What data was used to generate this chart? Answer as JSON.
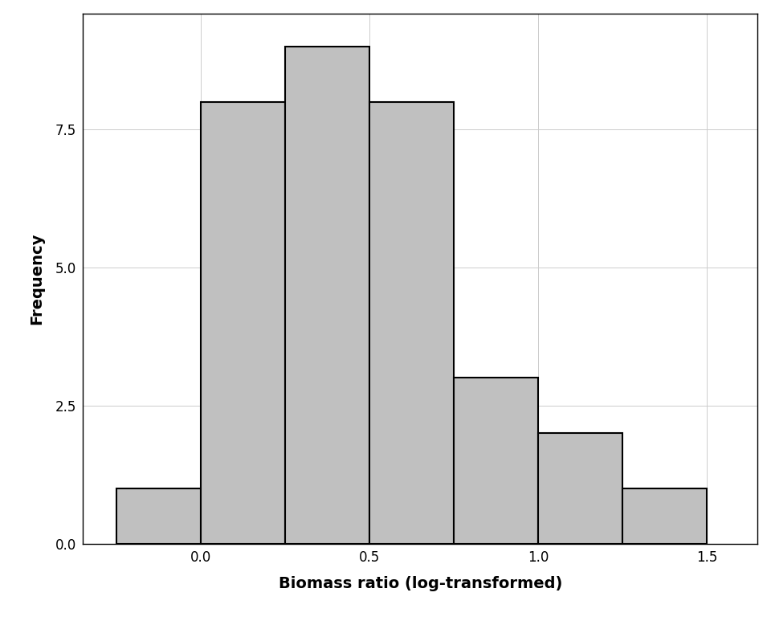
{
  "bin_edges": [
    -0.25,
    0.0,
    0.25,
    0.5,
    0.75,
    1.0,
    1.25,
    1.5
  ],
  "frequencies": [
    1,
    8,
    9,
    8,
    3,
    2,
    1
  ],
  "bar_color": "#c0c0c0",
  "bar_edgecolor": "#000000",
  "bar_linewidth": 1.5,
  "xlabel": "Biomass ratio (log-transformed)",
  "ylabel": "Frequency",
  "xlim": [
    -0.35,
    1.65
  ],
  "ylim": [
    0.0,
    9.6
  ],
  "xticks": [
    0.0,
    0.5,
    1.0,
    1.5
  ],
  "yticks": [
    0.0,
    2.5,
    5.0,
    7.5
  ],
  "xlabel_fontsize": 14,
  "ylabel_fontsize": 14,
  "tick_fontsize": 12,
  "background_color": "#ffffff",
  "panel_background": "#ffffff",
  "grid_color": "#cccccc",
  "grid_linewidth": 0.7,
  "spine_linewidth": 1.0,
  "font_family": "DejaVu Sans"
}
